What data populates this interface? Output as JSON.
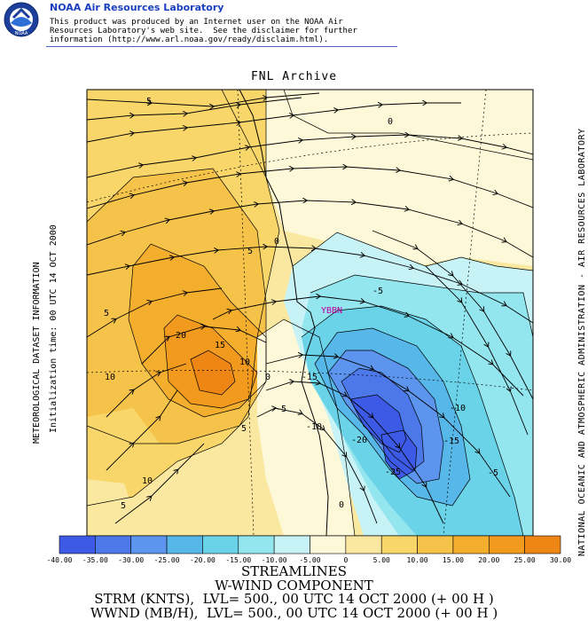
{
  "header": {
    "org": "NOAA Air Resources Laboratory",
    "logo_text": "NOAA",
    "disclaimer": [
      "This product was produced by an Internet user on the NOAA Air",
      "Resources Laboratory's web site.  See the disclaimer for further",
      "information (http://www.arl.noaa.gov/ready/disclaim.html)."
    ]
  },
  "map": {
    "title": "FNL Archive",
    "station": "YBBN",
    "left_label_a": "METEOROLOGICAL DATASET INFORMATION",
    "left_label_b": "Initialization time: 00 UTC 14 OCT 2000",
    "right_label": "NATIONAL OCEANIC AND ATMOSPHERIC ADMINISTRATION - AIR RESOURCES LABORATORY",
    "contour_labels": [
      "5",
      "0",
      "5",
      "0",
      "-5",
      "5",
      "20",
      "15",
      "10",
      "10",
      "0",
      "-15",
      "-5",
      "-10",
      "-10",
      "5",
      "-20",
      "-15",
      "-25",
      "-5",
      "10",
      "5",
      "0"
    ]
  },
  "colorbar": {
    "colors": [
      "#3d5ae6",
      "#4c78ea",
      "#5c94ee",
      "#56b7e8",
      "#6bd3e8",
      "#93e5ee",
      "#c7f2f6",
      "#fdf9d8",
      "#fae8a0",
      "#f8d66a",
      "#f6c34a",
      "#f3ae2e",
      "#f29a1e",
      "#ee8616"
    ],
    "labels": [
      "-40.00",
      "-35.00",
      "-30.00",
      "-25.00",
      "-20.00",
      "-15.00",
      "-10.00",
      "-5.00",
      "0",
      "5.00",
      "10.00",
      "15.00",
      "20.00",
      "25.00",
      "30.00"
    ]
  },
  "bottom": {
    "line1": "STREAMLINES",
    "line2": "W-WIND COMPONENT",
    "line3": "STRM (KNTS),  LVL= 500., 00 UTC 14 OCT 2000 (+ 00 H )",
    "line4": "WWND (MB/H),  LVL= 500., 00 UTC 14 OCT 2000 (+ 00 H )"
  }
}
